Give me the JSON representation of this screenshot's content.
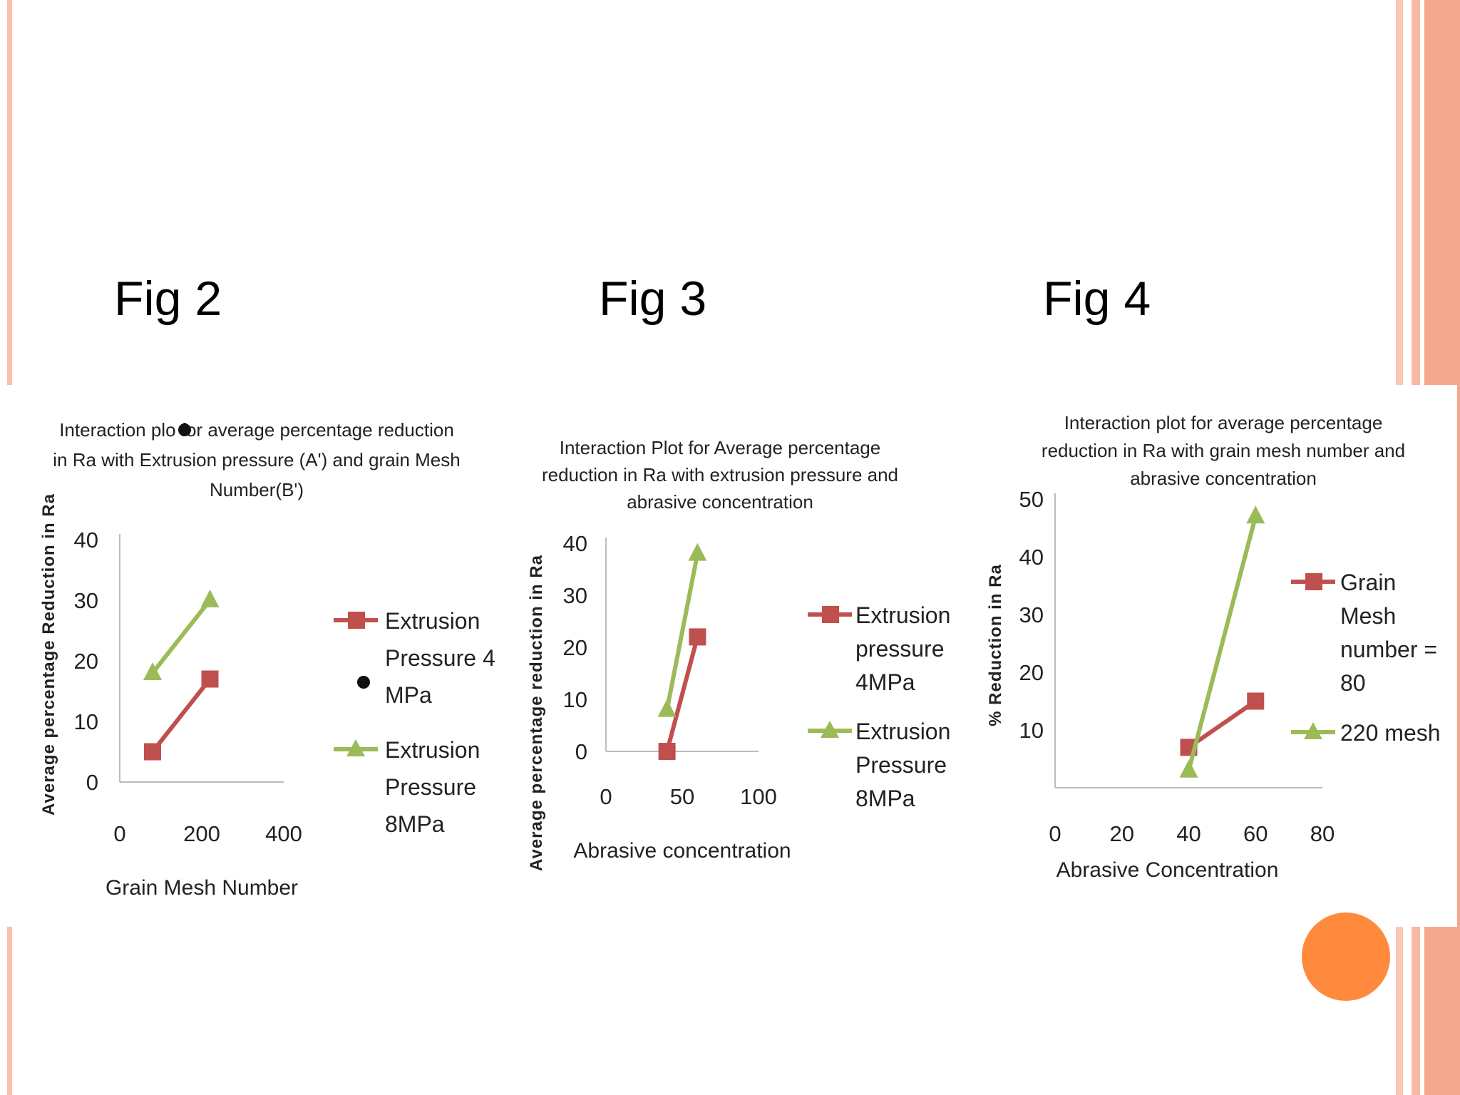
{
  "figures": [
    {
      "label": "Fig 2"
    },
    {
      "label": "Fig 3"
    },
    {
      "label": "Fig 4"
    }
  ],
  "colors": {
    "series_red": "#C0504D",
    "series_green": "#9BBB59",
    "side_stripe": "#F6B9A3",
    "slide_dot": "#FF8A3D"
  },
  "chart_data": [
    {
      "type": "line",
      "title": "Interaction plot for average percentage reduction in Ra with Extrusion pressure (A') and grain Mesh Number(B')",
      "title_lines": [
        "Interaction plo for average percentage reduction",
        "in Ra with Extrusion pressure (A') and grain Mesh",
        "Number(B')"
      ],
      "xlabel": "Grain Mesh Number",
      "ylabel": "Average percentage Reduction in Ra",
      "xlim": [
        0,
        400
      ],
      "ylim": [
        0,
        40
      ],
      "xticks": [
        "0",
        "200",
        "400"
      ],
      "yticks": [
        "0",
        "10",
        "20",
        "30",
        "40"
      ],
      "legend_position": "right",
      "series": [
        {
          "name": "Extrusion Pressure 4 MPa",
          "legend_lines": [
            "Extrusion",
            "Pressure 4",
            "MPa"
          ],
          "color": "#C0504D",
          "marker": "square",
          "x": [
            80,
            220
          ],
          "y": [
            5,
            17
          ]
        },
        {
          "name": "Extrusion Pressure 8MPa",
          "legend_lines": [
            "Extrusion",
            "Pressure",
            "8MPa"
          ],
          "color": "#9BBB59",
          "marker": "triangle",
          "x": [
            80,
            220
          ],
          "y": [
            18,
            30
          ]
        }
      ]
    },
    {
      "type": "line",
      "title": "Interaction Plot for Average percentage reduction in Ra with extrusion pressure and abrasive concentration",
      "title_lines": [
        "Interaction Plot for Average percentage",
        "reduction in Ra with extrusion pressure and",
        "abrasive concentration"
      ],
      "xlabel": "Abrasive concentration",
      "ylabel": "Average percentage reduction in Ra",
      "xlim": [
        0,
        100
      ],
      "ylim": [
        0,
        40
      ],
      "xticks": [
        "0",
        "50",
        "100"
      ],
      "yticks": [
        "0",
        "10",
        "20",
        "30",
        "40"
      ],
      "legend_position": "right",
      "series": [
        {
          "name": "Extrusion pressure 4MPa",
          "legend_lines": [
            "Extrusion",
            "pressure",
            "4MPa"
          ],
          "color": "#C0504D",
          "marker": "square",
          "x": [
            40,
            60
          ],
          "y": [
            0,
            22
          ]
        },
        {
          "name": "Extrusion Pressure 8MPa",
          "legend_lines": [
            "Extrusion",
            "Pressure",
            "8MPa"
          ],
          "color": "#9BBB59",
          "marker": "triangle",
          "x": [
            40,
            60
          ],
          "y": [
            8,
            38
          ]
        }
      ]
    },
    {
      "type": "line",
      "title": "Interaction plot for average percentage reduction in Ra with grain mesh number and abrasive concentration",
      "title_lines": [
        "Interaction plot for average percentage",
        "reduction in Ra with grain mesh number and",
        "abrasive concentration"
      ],
      "xlabel": "Abrasive Concentration",
      "ylabel": "% Reduction in Ra",
      "xlim": [
        0,
        80
      ],
      "ylim": [
        0,
        50
      ],
      "xticks": [
        "0",
        "20",
        "40",
        "60",
        "80"
      ],
      "yticks": [
        "10",
        "20",
        "30",
        "40",
        "50"
      ],
      "legend_position": "right",
      "series": [
        {
          "name": "Grain Mesh number = 80",
          "legend_lines": [
            "Grain",
            "Mesh",
            "number =",
            "80"
          ],
          "color": "#C0504D",
          "marker": "square",
          "x": [
            40,
            60
          ],
          "y": [
            7,
            15
          ]
        },
        {
          "name": "220 mesh",
          "legend_lines": [
            "220 mesh"
          ],
          "color": "#9BBB59",
          "marker": "triangle",
          "x": [
            40,
            60
          ],
          "y": [
            3,
            47
          ]
        }
      ]
    }
  ]
}
